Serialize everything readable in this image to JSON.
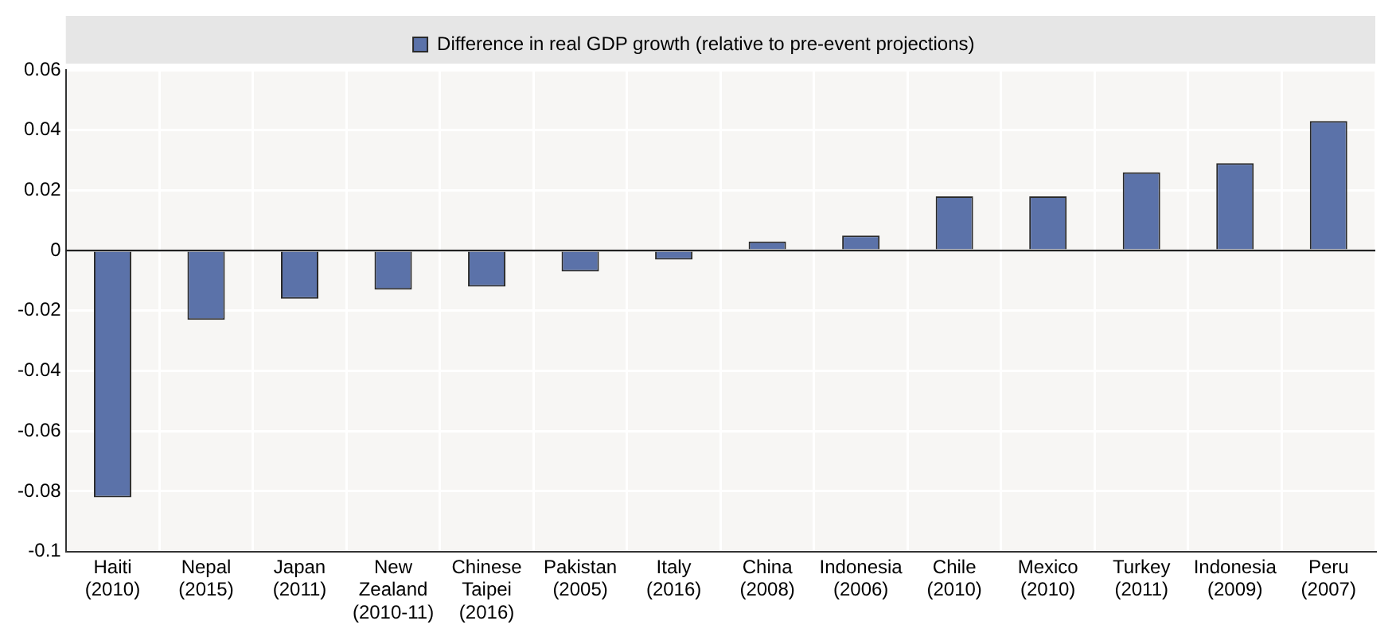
{
  "chart_data": {
    "type": "bar",
    "categories": [
      "Haiti\n(2010)",
      "Nepal\n(2015)",
      "Japan\n(2011)",
      "New\nZealand\n(2010-11)",
      "Chinese\nTaipei\n(2016)",
      "Pakistan\n(2005)",
      "Italy\n(2016)",
      "China\n(2008)",
      "Indonesia\n(2006)",
      "Chile\n(2010)",
      "Mexico\n(2010)",
      "Turkey\n(2011)",
      "Indonesia\n(2009)",
      "Peru\n(2007)"
    ],
    "series": [
      {
        "name": "Difference in real GDP growth (relative to pre-event projections)",
        "color": "#5b72a9",
        "values": [
          -0.082,
          -0.023,
          -0.016,
          -0.013,
          -0.012,
          -0.007,
          -0.003,
          0.003,
          0.005,
          0.018,
          0.018,
          0.026,
          0.029,
          0.043
        ]
      }
    ],
    "ylim": [
      -0.1,
      0.06
    ],
    "yticks": [
      -0.1,
      -0.08,
      -0.06,
      -0.04,
      -0.02,
      0,
      0.02,
      0.04,
      0.06
    ],
    "grid": true,
    "legend": "top"
  }
}
